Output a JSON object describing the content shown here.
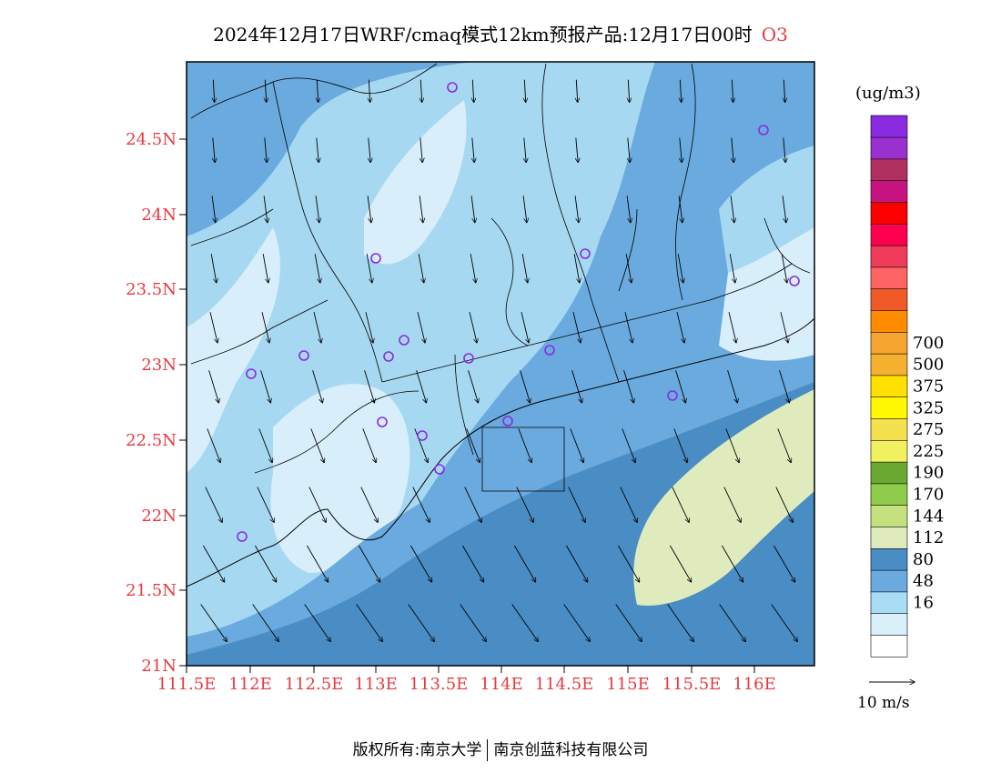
{
  "title": {
    "main": "2024年12月17日WRF/cmaq模式12km预报产品:12月17日00时",
    "species": "O3"
  },
  "colors": {
    "lat_label": "#e8383d",
    "lon_label": "#e8383d",
    "ocean_deep": "#4a8cc4",
    "ocean_mid": "#6aaade",
    "land_light": "#a6d8f2",
    "land_pale": "#d8eefa"
  },
  "map": {
    "lat_ticks": [
      "24.5N",
      "24N",
      "23.5N",
      "23N",
      "22.5N",
      "22N",
      "21.5N",
      "21N"
    ],
    "lon_ticks": [
      "111.5E",
      "112E",
      "112.5E",
      "113E",
      "113.5E",
      "114E",
      "114.5E",
      "115E",
      "115.5E",
      "116E"
    ]
  },
  "legend": {
    "unit": "(ug/m3)",
    "bins": [
      {
        "color": "#ffffff"
      },
      {
        "color": "#d9effa"
      },
      {
        "color": "#a9dcf5",
        "label": "16"
      },
      {
        "color": "#6aaade",
        "label": "48"
      },
      {
        "color": "#4a8cc4",
        "label": "80"
      },
      {
        "color": "#e0ebbd",
        "label": "112"
      },
      {
        "color": "#c5e17e",
        "label": "144"
      },
      {
        "color": "#8fcc4c",
        "label": "170"
      },
      {
        "color": "#6aa832",
        "label": "190"
      },
      {
        "color": "#f0f060",
        "label": "225"
      },
      {
        "color": "#f5e050",
        "label": "275"
      },
      {
        "color": "#fff800",
        "label": "325"
      },
      {
        "color": "#ffe000",
        "label": "375"
      },
      {
        "color": "#f5b030",
        "label": "500"
      },
      {
        "color": "#f5a530",
        "label": "700"
      },
      {
        "color": "#ff8c00"
      },
      {
        "color": "#f05a28"
      },
      {
        "color": "#ff6464"
      },
      {
        "color": "#f03c5a"
      },
      {
        "color": "#ff0050"
      },
      {
        "color": "#ff0000"
      },
      {
        "color": "#c81480"
      },
      {
        "color": "#b03060"
      },
      {
        "color": "#9b30d0"
      },
      {
        "color": "#8a2be2"
      }
    ],
    "vector_ref_label": "10 m/s"
  },
  "footer": {
    "copyright": "版权所有:南京大学",
    "company": "南京创蓝科技有限公司"
  }
}
